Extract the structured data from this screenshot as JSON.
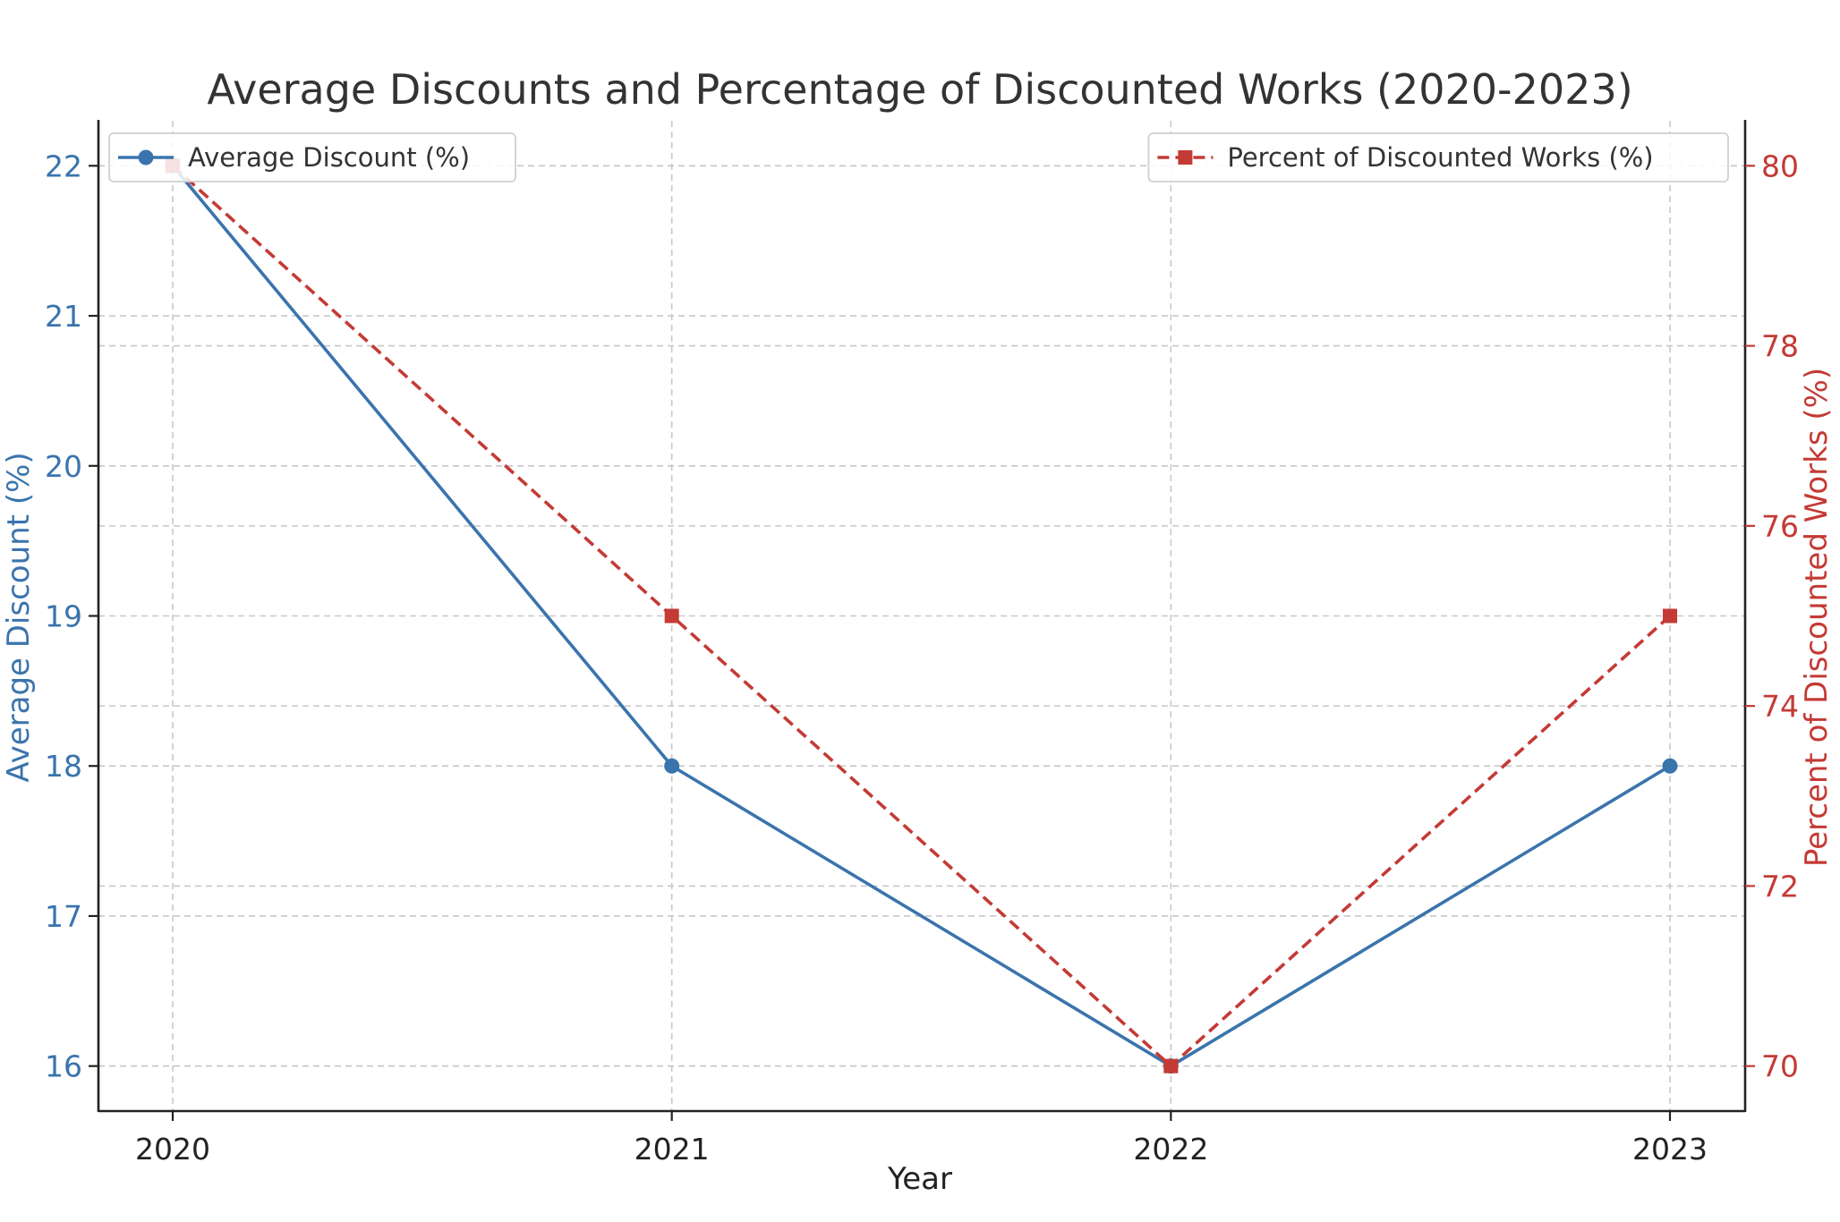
{
  "chart_data": {
    "type": "line",
    "title": "Average Discounts and Percentage of Discounted Works (2020-2023)",
    "xlabel": "Year",
    "x": [
      "2020",
      "2021",
      "2022",
      "2023"
    ],
    "x_ticks": [
      "2020",
      "2021",
      "2022",
      "2023"
    ],
    "grid": true,
    "left_axis": {
      "label": "Average Discount (%)",
      "color": "#3a74ad",
      "ylim": [
        15.7,
        22.3
      ],
      "ticks": [
        "16",
        "17",
        "18",
        "19",
        "20",
        "21",
        "22"
      ]
    },
    "right_axis": {
      "label": "Percent of Discounted Works (%)",
      "color": "#c43a35",
      "ylim": [
        69.5,
        80.5
      ],
      "ticks": [
        "70",
        "72",
        "74",
        "76",
        "78",
        "80"
      ]
    },
    "series": [
      {
        "name": "Average Discount (%)",
        "axis": "left",
        "values": [
          22,
          18,
          16,
          18
        ],
        "color": "#3a74ad",
        "line_style": "solid",
        "marker": "circle"
      },
      {
        "name": "Percent of Discounted Works (%)",
        "axis": "right",
        "values": [
          80,
          75,
          70,
          75
        ],
        "color": "#c43a35",
        "line_style": "dashed",
        "marker": "square"
      }
    ],
    "legends": [
      {
        "series": 0,
        "placement": "top-left"
      },
      {
        "series": 1,
        "placement": "top-right"
      }
    ]
  }
}
